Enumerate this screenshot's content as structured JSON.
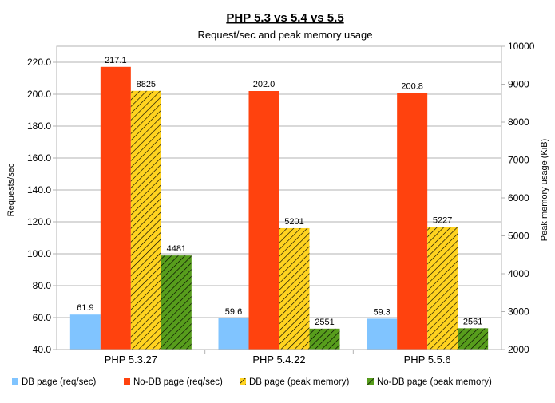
{
  "chart_data": {
    "type": "bar",
    "title": "PHP 5.3 vs 5.4 vs 5.5",
    "subtitle": "Request/sec and peak memory usage",
    "categories": [
      "PHP 5.3.27",
      "PHP 5.4.22",
      "PHP 5.5.6"
    ],
    "y_left": {
      "label": "Requests/sec",
      "range": [
        40,
        230
      ],
      "ticks": [
        "40.0",
        "60.0",
        "80.0",
        "100.0",
        "120.0",
        "140.0",
        "160.0",
        "180.0",
        "200.0",
        "220.0"
      ]
    },
    "y_right": {
      "label": "Peak memory usage (KiB)",
      "range": [
        2000,
        10000
      ],
      "ticks": [
        "2000",
        "3000",
        "4000",
        "5000",
        "6000",
        "7000",
        "8000",
        "9000",
        "10000"
      ]
    },
    "series": [
      {
        "name": "DB page (req/sec)",
        "axis": "left",
        "color": "#80c4ff",
        "pattern": "solid",
        "values": [
          61.9,
          59.6,
          59.3
        ],
        "labels": [
          "61.9",
          "59.6",
          "59.3"
        ]
      },
      {
        "name": "No-DB page (req/sec)",
        "axis": "left",
        "color": "#ff420e",
        "pattern": "solid",
        "values": [
          217.1,
          202.0,
          200.8
        ],
        "labels": [
          "217.1",
          "202.0",
          "200.8"
        ]
      },
      {
        "name": "DB page (peak memory)",
        "axis": "right",
        "color": "#ffd320",
        "pattern": "hatch",
        "values": [
          8825,
          5201,
          5227
        ],
        "labels": [
          "8825",
          "5201",
          "5227"
        ]
      },
      {
        "name": "No-DB page (peak memory)",
        "axis": "right",
        "color": "#579d1c",
        "pattern": "hatch",
        "values": [
          4481,
          2551,
          2561
        ],
        "labels": [
          "4481",
          "2551",
          "2561"
        ]
      }
    ],
    "grid": true,
    "legend_position": "bottom"
  }
}
